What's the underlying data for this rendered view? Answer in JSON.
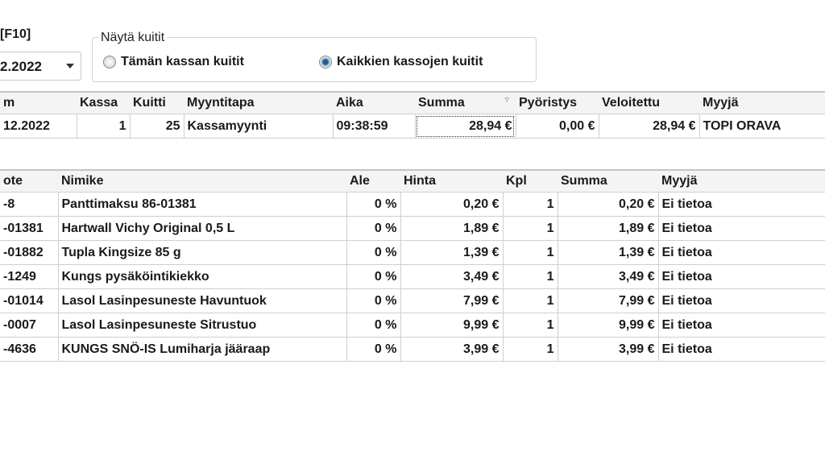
{
  "toolbar": {
    "shortcut": "[F10]",
    "date_value": "2.2022"
  },
  "show_receipts": {
    "label": "Näytä kuitit",
    "options": [
      {
        "label": "Tämän kassan kuitit",
        "selected": false
      },
      {
        "label": "Kaikkien kassojen kuitit",
        "selected": true
      }
    ]
  },
  "receipts": {
    "columns": [
      "m",
      "Kassa",
      "Kuitti",
      "Myyntitapa",
      "Aika",
      "Summa",
      "Pyöristys",
      "Veloitettu",
      "Myyjä"
    ],
    "rows": [
      [
        "12.2022",
        "1",
        "25",
        "Kassamyynti",
        "09:38:59",
        "28,94 €",
        "0,00 €",
        "28,94 €",
        "TOPI ORAVA"
      ]
    ]
  },
  "lines": {
    "columns": [
      "ote",
      "Nimike",
      "Ale",
      "Hinta",
      "Kpl",
      "Summa",
      "Myyjä"
    ],
    "rows": [
      [
        "-8",
        "Panttimaksu 86-01381",
        "0 %",
        "0,20 €",
        "1",
        "0,20 €",
        "Ei tietoa"
      ],
      [
        "-01381",
        "Hartwall Vichy Original 0,5 L",
        "0 %",
        "1,89 €",
        "1",
        "1,89 €",
        "Ei tietoa"
      ],
      [
        "-01882",
        "Tupla Kingsize 85 g",
        "0 %",
        "1,39 €",
        "1",
        "1,39 €",
        "Ei tietoa"
      ],
      [
        "-1249",
        "Kungs pysäköintikiekko",
        "0 %",
        "3,49 €",
        "1",
        "3,49 €",
        "Ei tietoa"
      ],
      [
        "-01014",
        "Lasol Lasinpesuneste Havuntuok",
        "0 %",
        "7,99 €",
        "1",
        "7,99 €",
        "Ei tietoa"
      ],
      [
        "-0007",
        "Lasol Lasinpesuneste Sitrustuo",
        "0 %",
        "9,99 €",
        "1",
        "9,99 €",
        "Ei tietoa"
      ],
      [
        "-4636",
        "KUNGS SNÖ-IS Lumiharja jääraap",
        "0 %",
        "3,99 €",
        "1",
        "3,99 €",
        "Ei tietoa"
      ]
    ]
  }
}
